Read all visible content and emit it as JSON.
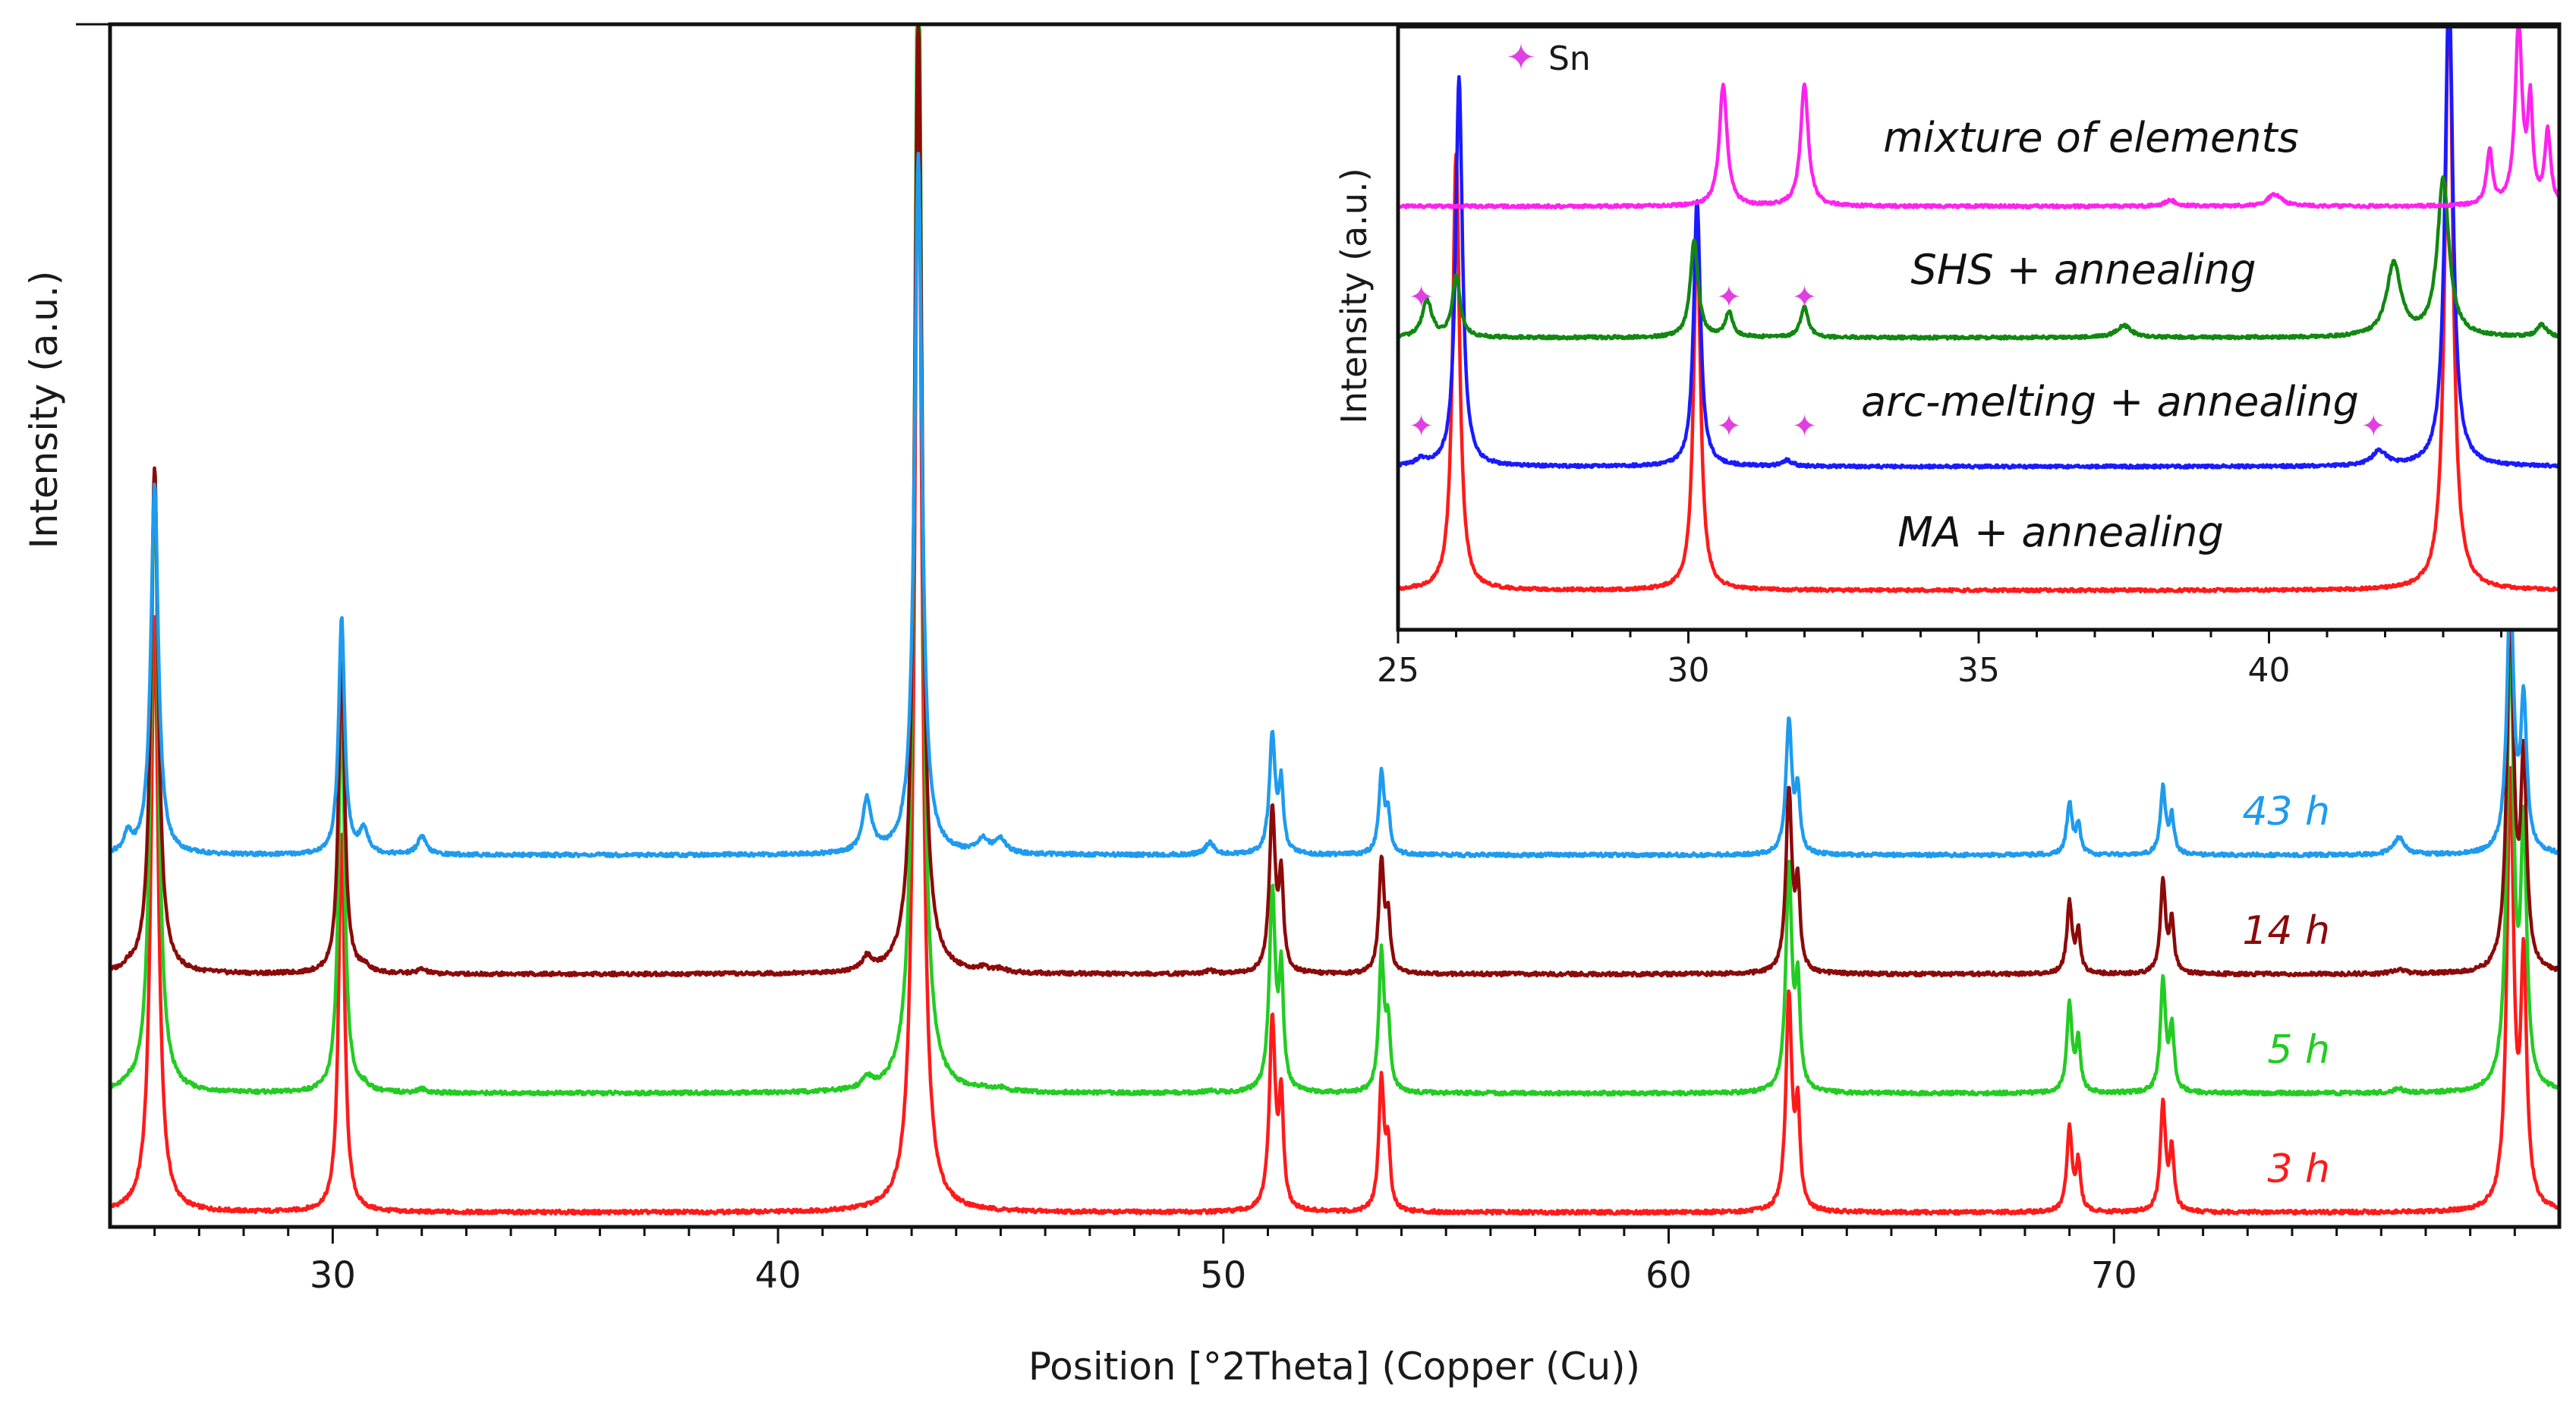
{
  "chart_data": [
    {
      "type": "line",
      "role": "main",
      "title": "",
      "xlabel": "Position [°2Theta] (Copper (Cu))",
      "ylabel": "Intensity (a.u.)",
      "xlim": [
        25,
        80
      ],
      "xticks": [
        30,
        40,
        50,
        60,
        70
      ],
      "yticks_labeled": false,
      "grid": false,
      "offset_step": 1.0,
      "peaks": {
        "ni3sn4": [
          [
            26.0,
            5.0,
            0.1
          ],
          [
            30.2,
            3.2,
            0.08
          ],
          [
            43.15,
            9.5,
            0.1
          ],
          [
            51.1,
            1.6,
            0.08
          ],
          [
            51.3,
            0.9,
            0.06
          ],
          [
            53.55,
            1.1,
            0.07
          ],
          [
            53.7,
            0.5,
            0.06
          ],
          [
            62.7,
            1.8,
            0.08
          ],
          [
            62.9,
            0.8,
            0.06
          ],
          [
            69.0,
            0.7,
            0.07
          ],
          [
            69.2,
            0.4,
            0.06
          ],
          [
            71.1,
            0.9,
            0.07
          ],
          [
            71.3,
            0.5,
            0.06
          ],
          [
            78.9,
            3.6,
            0.09
          ],
          [
            79.2,
            2.0,
            0.08
          ]
        ],
        "sn_extra": [
          [
            25.4,
            0.15,
            0.1
          ],
          [
            30.7,
            0.2,
            0.12
          ],
          [
            32.0,
            0.15,
            0.12
          ],
          [
            42.0,
            0.45,
            0.12
          ],
          [
            44.6,
            0.12,
            0.15
          ],
          [
            45.0,
            0.12,
            0.15
          ],
          [
            49.7,
            0.1,
            0.12
          ],
          [
            76.4,
            0.15,
            0.15
          ]
        ]
      },
      "series": [
        {
          "name": "3 h",
          "color": "#ff1a1a",
          "offset": 0,
          "main_scale": 1.0,
          "extra_scale": 0
        },
        {
          "name": "5 h",
          "color": "#22cc22",
          "offset": 1,
          "main_scale": 1.05,
          "extra_scale": 0.2
        },
        {
          "name": "14 h",
          "color": "#8b0a0a",
          "offset": 2,
          "main_scale": 0.85,
          "extra_scale": 0.25
        },
        {
          "name": "43 h",
          "color": "#1e9bef",
          "offset": 3,
          "main_scale": 0.62,
          "extra_scale": 1.0
        }
      ]
    },
    {
      "type": "line",
      "role": "inset",
      "xlim": [
        25,
        45
      ],
      "xticks": [
        25,
        30,
        35,
        40
      ],
      "ylabel": "Intensity (a.u.)",
      "legend": {
        "marker": "✦",
        "label": "Sn",
        "color": "#e040e0"
      },
      "series": [
        {
          "name": "MA + annealing",
          "color": "#ff1a1a",
          "offset": 0,
          "peaks": [
            [
              26.0,
              3.6,
              0.07
            ],
            [
              30.15,
              3.0,
              0.07
            ],
            [
              43.1,
              5.0,
              0.08
            ]
          ],
          "markers_x": []
        },
        {
          "name": "arc-melting + annealing",
          "color": "#1a1aff",
          "offset": 1,
          "peaks": [
            [
              25.4,
              0.05,
              0.1
            ],
            [
              26.05,
              3.2,
              0.07
            ],
            [
              30.15,
              2.2,
              0.07
            ],
            [
              31.7,
              0.05,
              0.1
            ],
            [
              41.9,
              0.12,
              0.15
            ],
            [
              43.1,
              4.0,
              0.08
            ]
          ],
          "markers_x": [
            25.4,
            30.7,
            32.0,
            41.8
          ]
        },
        {
          "name": "SHS + annealing",
          "color": "#118811",
          "offset": 2,
          "peaks": [
            [
              25.5,
              0.3,
              0.1
            ],
            [
              26.0,
              0.5,
              0.08
            ],
            [
              30.1,
              0.8,
              0.08
            ],
            [
              30.7,
              0.2,
              0.08
            ],
            [
              32.0,
              0.25,
              0.08
            ],
            [
              37.5,
              0.1,
              0.15
            ],
            [
              42.15,
              0.6,
              0.15
            ],
            [
              43.0,
              1.3,
              0.12
            ],
            [
              44.7,
              0.1,
              0.1
            ]
          ],
          "markers_x": [
            25.4,
            30.7,
            32.0
          ]
        },
        {
          "name": "mixture of elements",
          "color": "#ff22ee",
          "offset": 3,
          "peaks": [
            [
              30.6,
              1.0,
              0.08
            ],
            [
              32.0,
              1.0,
              0.08
            ],
            [
              38.3,
              0.05,
              0.12
            ],
            [
              40.1,
              0.1,
              0.15
            ],
            [
              43.8,
              0.45,
              0.06
            ],
            [
              44.3,
              1.5,
              0.07
            ],
            [
              44.5,
              0.8,
              0.05
            ],
            [
              44.8,
              0.6,
              0.06
            ]
          ],
          "markers_x": []
        }
      ]
    }
  ]
}
